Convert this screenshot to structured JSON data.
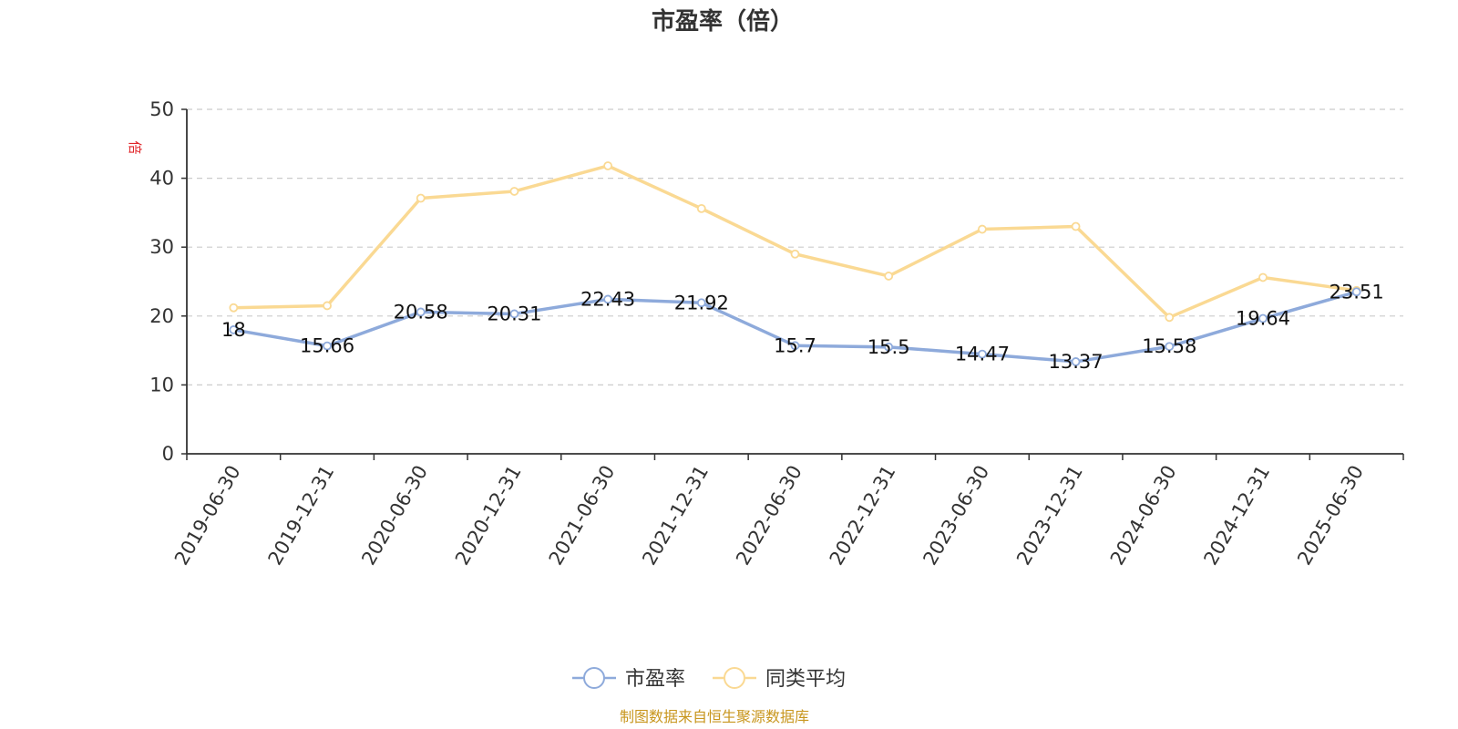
{
  "chart_data": {
    "type": "line",
    "title": "市盈率（倍）",
    "ylabel": "倍",
    "ylim": [
      0,
      50
    ],
    "yticks": [
      0,
      10,
      20,
      30,
      40,
      50
    ],
    "grid": true,
    "legend_position": "bottom",
    "categories": [
      "2019-06-30",
      "2019-12-31",
      "2020-06-30",
      "2020-12-31",
      "2021-06-30",
      "2021-12-31",
      "2022-06-30",
      "2022-12-31",
      "2023-06-30",
      "2023-12-31",
      "2024-06-30",
      "2024-12-31",
      "2025-06-30"
    ],
    "series": [
      {
        "name": "市盈率",
        "color": "#8eaadb",
        "values": [
          18,
          15.66,
          20.58,
          20.31,
          22.43,
          21.92,
          15.7,
          15.5,
          14.47,
          13.37,
          15.58,
          19.64,
          23.51
        ],
        "labels": [
          "18",
          "15.66",
          "20.58",
          "20.31",
          "22.43",
          "21.92",
          "15.7",
          "15.5",
          "14.47",
          "13.37",
          "15.58",
          "19.64",
          "23.51"
        ]
      },
      {
        "name": "同类平均",
        "color": "#fad993",
        "values": [
          21.2,
          21.5,
          37.1,
          38.1,
          41.8,
          35.6,
          29.0,
          25.8,
          32.6,
          33.0,
          19.8,
          25.6,
          23.7
        ]
      }
    ]
  },
  "source": "制图数据来自恒生聚源数据库",
  "colors": {
    "unit_label": "#e0262a",
    "axis": "#333333",
    "grid": "#cccccc"
  }
}
